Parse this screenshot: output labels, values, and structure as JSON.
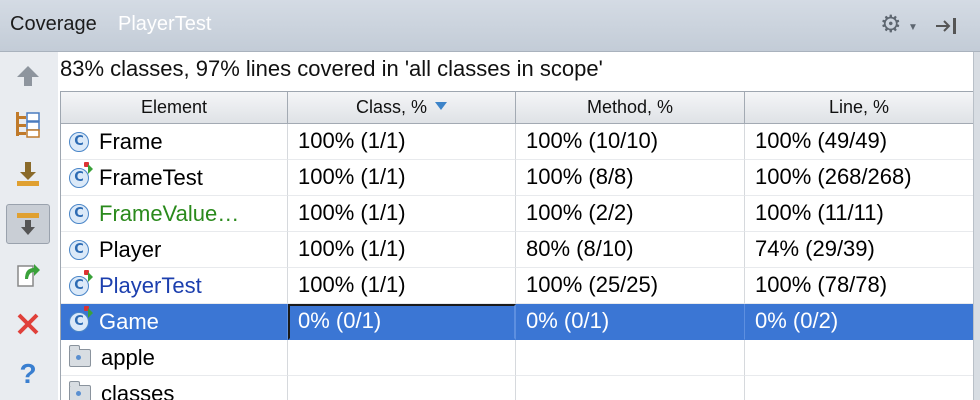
{
  "window": {
    "title": "Coverage",
    "subtitle": "PlayerTest"
  },
  "summary": "83% classes, 97% lines covered in 'all classes in scope'",
  "table": {
    "headers": [
      "Element",
      "Class, %",
      "Method, %",
      "Line, %"
    ],
    "rows": [
      {
        "name": "Frame",
        "cls": "100% (1/1)",
        "method": "100% (10/10)",
        "line": "100% (49/49)"
      },
      {
        "name": "FrameTest",
        "cls": "100% (1/1)",
        "method": "100% (8/8)",
        "line": "100% (268/268)"
      },
      {
        "name": "FrameValue…",
        "cls": "100% (1/1)",
        "method": "100% (2/2)",
        "line": "100% (11/11)"
      },
      {
        "name": "Player",
        "cls": "100% (1/1)",
        "method": "80% (8/10)",
        "line": "74% (29/39)"
      },
      {
        "name": "PlayerTest",
        "cls": "100% (1/1)",
        "method": "100% (25/25)",
        "line": "100% (78/78)"
      },
      {
        "name": "Game",
        "cls": "0% (0/1)",
        "method": "0% (0/1)",
        "line": "0% (0/2)"
      },
      {
        "name": "apple",
        "cls": "",
        "method": "",
        "line": ""
      },
      {
        "name": "classes",
        "cls": "",
        "method": "",
        "line": ""
      }
    ]
  },
  "icons": {
    "toolbar": [
      "up-arrow-icon",
      "flatten-packages-icon",
      "import-icon",
      "autoscroll-icon",
      "export-icon",
      "close-icon",
      "help-icon"
    ],
    "class_icon_letter": "C",
    "help_glyph": "?"
  },
  "colors": {
    "selection": "#3b76d4",
    "title_subtitle": "#ffffff",
    "green_text": "#2a8a1c",
    "blue_text": "#1c3fae"
  }
}
